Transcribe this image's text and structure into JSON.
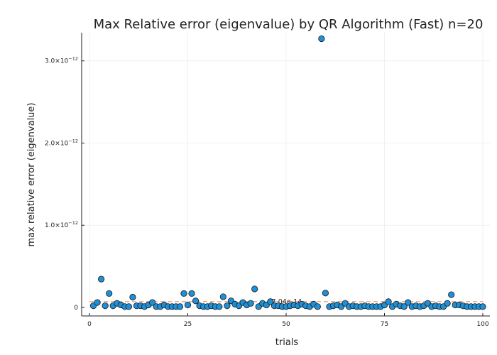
{
  "chart_data": {
    "type": "scatter",
    "title": "Max Relative error (eigenvalue) by QR Algorithm (Fast)  n=20",
    "xlabel": "trials",
    "ylabel": "max relative error (eigenvalue)",
    "xlim": [
      0,
      100
    ],
    "ylim": [
      0,
      3.3e-12
    ],
    "x_ticks": [
      0,
      25,
      50,
      75,
      100
    ],
    "x_tick_labels": [
      "0",
      "25",
      "50",
      "75",
      "100"
    ],
    "y_ticks": [
      0,
      1e-12,
      2e-12,
      3e-12
    ],
    "y_tick_labels": [
      {
        "base": "0",
        "exp": ""
      },
      {
        "base": "1.0×10",
        "exp": "−12"
      },
      {
        "base": "2.0×10",
        "exp": "−12"
      },
      {
        "base": "3.0×10",
        "exp": "−12"
      }
    ],
    "grid": true,
    "legend": "none",
    "point_color": "#1f8fd6",
    "mean_line_color": "#e8a48a",
    "mean_value": 7.04e-14,
    "mean_label": "7.04e-14",
    "series": [
      {
        "x": [
          1,
          2,
          3,
          4,
          5,
          6,
          7,
          8,
          9,
          10,
          11,
          12,
          13,
          14,
          15,
          16,
          17,
          18,
          19,
          20,
          21,
          22,
          23,
          24,
          25,
          26,
          27,
          28,
          29,
          30,
          31,
          32,
          33,
          34,
          35,
          36,
          37,
          38,
          39,
          40,
          41,
          42,
          43,
          44,
          45,
          46,
          47,
          48,
          49,
          50,
          51,
          52,
          53,
          54,
          55,
          56,
          57,
          58,
          59,
          60,
          61,
          62,
          63,
          64,
          65,
          66,
          67,
          68,
          69,
          70,
          71,
          72,
          73,
          74,
          75,
          76,
          77,
          78,
          79,
          80,
          81,
          82,
          83,
          84,
          85,
          86,
          87,
          88,
          89,
          90,
          91,
          92,
          93,
          94,
          95,
          96,
          97,
          98,
          99,
          100
        ],
        "y": [
          2e-14,
          6e-14,
          3.45e-13,
          2e-14,
          1.7e-13,
          2e-14,
          5e-14,
          3e-14,
          1e-14,
          1e-14,
          1.25e-13,
          2e-14,
          2e-14,
          1e-14,
          3e-14,
          6e-14,
          1e-14,
          1e-14,
          3e-14,
          1e-14,
          1e-14,
          1e-14,
          1e-14,
          1.7e-13,
          3e-14,
          1.7e-13,
          8e-14,
          2e-14,
          1e-14,
          1e-14,
          2e-14,
          1e-14,
          1e-14,
          1.3e-13,
          2e-14,
          8e-14,
          4e-14,
          2e-14,
          6e-14,
          3e-14,
          5e-14,
          2.25e-13,
          1e-14,
          5e-14,
          3e-14,
          7e-14,
          2e-14,
          2e-14,
          1e-14,
          1e-14,
          2e-14,
          3e-14,
          2e-14,
          4e-14,
          2e-14,
          1e-14,
          4e-14,
          1e-14,
          3.27e-12,
          1.75e-13,
          1e-14,
          2e-14,
          3e-14,
          1e-14,
          5e-14,
          1e-14,
          2e-14,
          1e-14,
          1e-14,
          2e-14,
          1e-14,
          1e-14,
          1e-14,
          1e-14,
          3e-14,
          7e-14,
          1e-14,
          4e-14,
          2e-14,
          1e-14,
          6e-14,
          1e-14,
          2e-14,
          1e-14,
          2e-14,
          5e-14,
          1e-14,
          2e-14,
          1e-14,
          1e-14,
          5e-14,
          1.55e-13,
          3e-14,
          3e-14,
          2e-14,
          1e-14,
          1e-14,
          1e-14,
          1e-14,
          1e-14
        ]
      }
    ]
  }
}
